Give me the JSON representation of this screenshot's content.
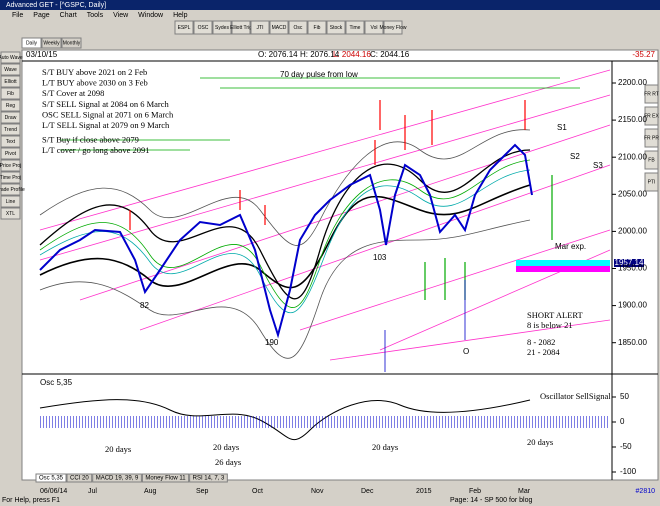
{
  "window": {
    "title": "Advanced GET - [^GSPC, Daily]"
  },
  "menu": [
    "File",
    "Page",
    "Chart",
    "Tools",
    "View",
    "Window",
    "Help"
  ],
  "toolbar": [
    "ESPL",
    "OSC",
    "Sydes",
    "Elliott Trig",
    "JTI",
    "MACD",
    "Osc",
    "Fib",
    "Stock",
    "Time",
    "Vol",
    "Money Flow"
  ],
  "left_tools": [
    "Auto Wave",
    "Wave",
    "Elliott",
    "Fib",
    "Reg",
    "Draw",
    "Trend",
    "Text",
    "Pivot",
    "Price Proj",
    "Time Proj",
    "Trade Profile",
    "Line",
    "XTL"
  ],
  "right_tools": [
    "FR RT",
    "FR EX",
    "FR PR",
    "FB",
    "PTI"
  ],
  "period_tabs": [
    "Daily",
    "Weekly",
    "Monthly"
  ],
  "header": {
    "date": "03/10/15",
    "open": "O: 2076.14",
    "high": "H: 2076.14",
    "low": "L: 2044.16",
    "close": "C: 2044.16",
    "change": "-35.27"
  },
  "notes": [
    "S/T BUY above 2021 on 2 Feb",
    "L/T BUY above 2030 on 3 Feb",
    "S/T Cover at 2098",
    "S/T SELL Signal at 2084 on 6 March",
    "OSC SELL Signal at 2071 on 6 March",
    "L/T SELL Signal at 2079 on 9 March",
    "S/T Buy if close above 2079",
    "L/T cover / go long above 2091"
  ],
  "annotations": {
    "pulse": "70 day pulse from low",
    "s1": "S1",
    "s2": "S2",
    "s3": "S3",
    "mar_exp": "Mar exp.",
    "alert": "SHORT ALERT",
    "alert_detail": "8 is below 21",
    "ma8": "8   - 2082",
    "ma21": "21 - 2084",
    "low_aug": "82",
    "low_dec": "103",
    "low_oct": "190",
    "wave_o": "O",
    "price_box": "1957.14"
  },
  "price_axis": [
    "2200.00",
    "2150.00",
    "2100.00",
    "2050.00",
    "2000.00",
    "1950.00",
    "1900.00",
    "1850.00"
  ],
  "oscillator": {
    "label": "Osc 5,35",
    "signal": "Oscillator SellSignal",
    "days": [
      "20 days",
      "20 days",
      "20 days",
      "20 days"
    ],
    "days_long": "26 days",
    "axis": [
      "50",
      "0",
      "-50",
      "-100"
    ]
  },
  "bottom_tabs": [
    "Osc 5,35",
    "CCI 20",
    "MACD 19, 39, 9",
    "Money Flow 11",
    "RSI 14, 7, 3"
  ],
  "date_axis": [
    "06/06/14",
    "Jul",
    "Aug",
    "Sep",
    "Oct",
    "Nov",
    "Dec",
    "2015",
    "Feb",
    "Mar"
  ],
  "status": {
    "help": "For Help, press F1",
    "page": "Page: 14 - SP 500 for blog",
    "id": "#2810"
  }
}
